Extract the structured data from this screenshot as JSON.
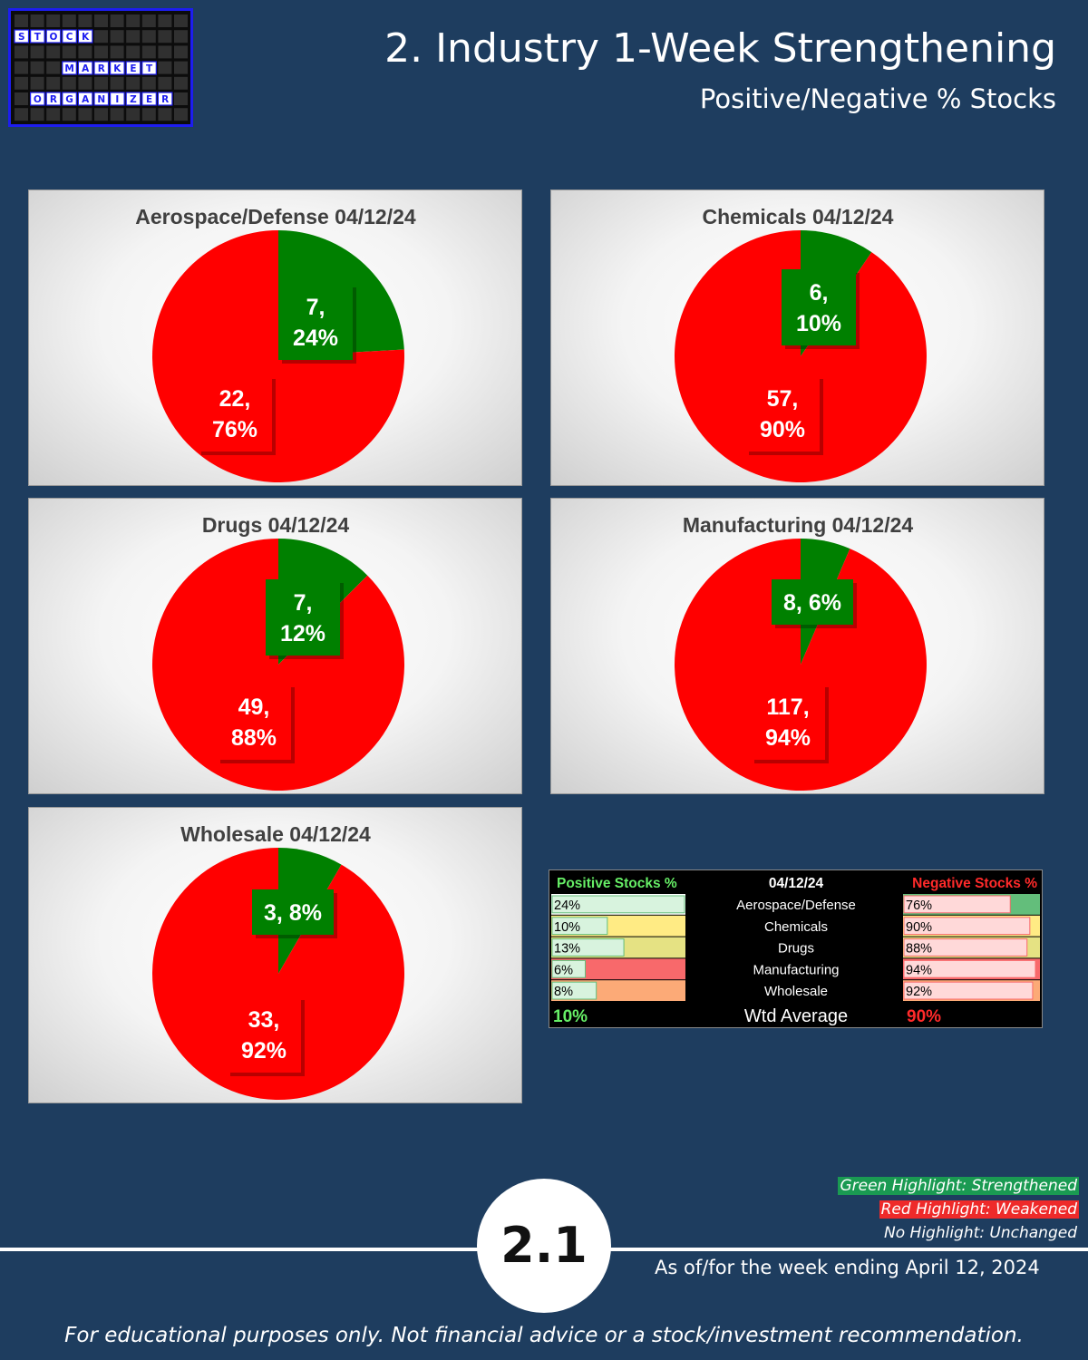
{
  "logo": {
    "row1": [
      "S",
      "T",
      "O",
      "C",
      "K"
    ],
    "row2": [
      "M",
      "A",
      "R",
      "K",
      "E",
      "T"
    ],
    "row3": [
      "O",
      "R",
      "G",
      "A",
      "N",
      "I",
      "Z",
      "E",
      "R"
    ]
  },
  "header": {
    "title": "2. Industry 1-Week Strengthening",
    "subtitle": "Positive/Negative % Stocks"
  },
  "colors": {
    "positive": "#008000",
    "negative": "#ff0000",
    "background": "#1e3d5f"
  },
  "chart_data": [
    {
      "type": "pie",
      "title": "Aerospace/Defense 04/12/24",
      "slices": [
        {
          "label": "Positive",
          "value": 7,
          "percent": "24%",
          "color": "#008000",
          "label_text": [
            "7,",
            "24%"
          ]
        },
        {
          "label": "Negative",
          "value": 22,
          "percent": "76%",
          "color": "#ff0000",
          "label_text": [
            "22,",
            "76%"
          ]
        }
      ]
    },
    {
      "type": "pie",
      "title": "Chemicals 04/12/24",
      "slices": [
        {
          "label": "Positive",
          "value": 6,
          "percent": "10%",
          "color": "#008000",
          "label_text": [
            "6,",
            "10%"
          ]
        },
        {
          "label": "Negative",
          "value": 57,
          "percent": "90%",
          "color": "#ff0000",
          "label_text": [
            "57,",
            "90%"
          ]
        }
      ]
    },
    {
      "type": "pie",
      "title": "Drugs 04/12/24",
      "slices": [
        {
          "label": "Positive",
          "value": 7,
          "percent": "12%",
          "color": "#008000",
          "label_text": [
            "7,",
            "12%"
          ]
        },
        {
          "label": "Negative",
          "value": 49,
          "percent": "88%",
          "color": "#ff0000",
          "label_text": [
            "49,",
            "88%"
          ]
        }
      ]
    },
    {
      "type": "pie",
      "title": "Manufacturing 04/12/24",
      "slices": [
        {
          "label": "Positive",
          "value": 8,
          "percent": "6%",
          "color": "#008000",
          "label_text": [
            "8, 6%"
          ]
        },
        {
          "label": "Negative",
          "value": 117,
          "percent": "94%",
          "color": "#ff0000",
          "label_text": [
            "117,",
            "94%"
          ]
        }
      ]
    },
    {
      "type": "pie",
      "title": "Wholesale 04/12/24",
      "slices": [
        {
          "label": "Positive",
          "value": 3,
          "percent": "8%",
          "color": "#008000",
          "label_text": [
            "3, 8%"
          ]
        },
        {
          "label": "Negative",
          "value": 33,
          "percent": "92%",
          "color": "#ff0000",
          "label_text": [
            "33,",
            "92%"
          ]
        }
      ]
    },
    {
      "type": "table",
      "headers": {
        "positive": "Positive Stocks %",
        "date": "04/12/24",
        "negative": "Negative Stocks %"
      },
      "rows": [
        {
          "industry": "Aerospace/Defense",
          "positive": 24,
          "positive_text": "24%",
          "positive_bg": "#ffffff",
          "negative": 76,
          "negative_text": "76%",
          "negative_bg": "#63be7b"
        },
        {
          "industry": "Chemicals",
          "positive": 10,
          "positive_text": "10%",
          "positive_bg": "#ffeb84",
          "negative": 90,
          "negative_text": "90%",
          "negative_bg": "#ffeb84"
        },
        {
          "industry": "Drugs",
          "positive": 13,
          "positive_text": "13%",
          "positive_bg": "#e5e283",
          "negative": 88,
          "negative_text": "88%",
          "negative_bg": "#e5e283"
        },
        {
          "industry": "Manufacturing",
          "positive": 6,
          "positive_text": "6%",
          "positive_bg": "#f8696b",
          "negative": 94,
          "negative_text": "94%",
          "negative_bg": "#f8696b"
        },
        {
          "industry": "Wholesale",
          "positive": 8,
          "positive_text": "8%",
          "positive_bg": "#fcaa77",
          "negative": 92,
          "negative_text": "92%",
          "negative_bg": "#fcaa77"
        }
      ],
      "average": {
        "label": "Wtd Average",
        "positive": "10%",
        "negative": "90%"
      }
    }
  ],
  "legend": {
    "green": {
      "text": "Green Highlight: Strengthened",
      "bg": "#1a9a52"
    },
    "red": {
      "text": "Red Highlight: Weakened",
      "bg": "#ee2a2a"
    },
    "none": {
      "text": "No Highlight: Unchanged"
    }
  },
  "footer": {
    "badge": "2.1",
    "as_of": "As of/for the week ending April 12, 2024",
    "disclaimer": "For educational purposes only. Not financial advice or a stock/investment recommendation."
  }
}
